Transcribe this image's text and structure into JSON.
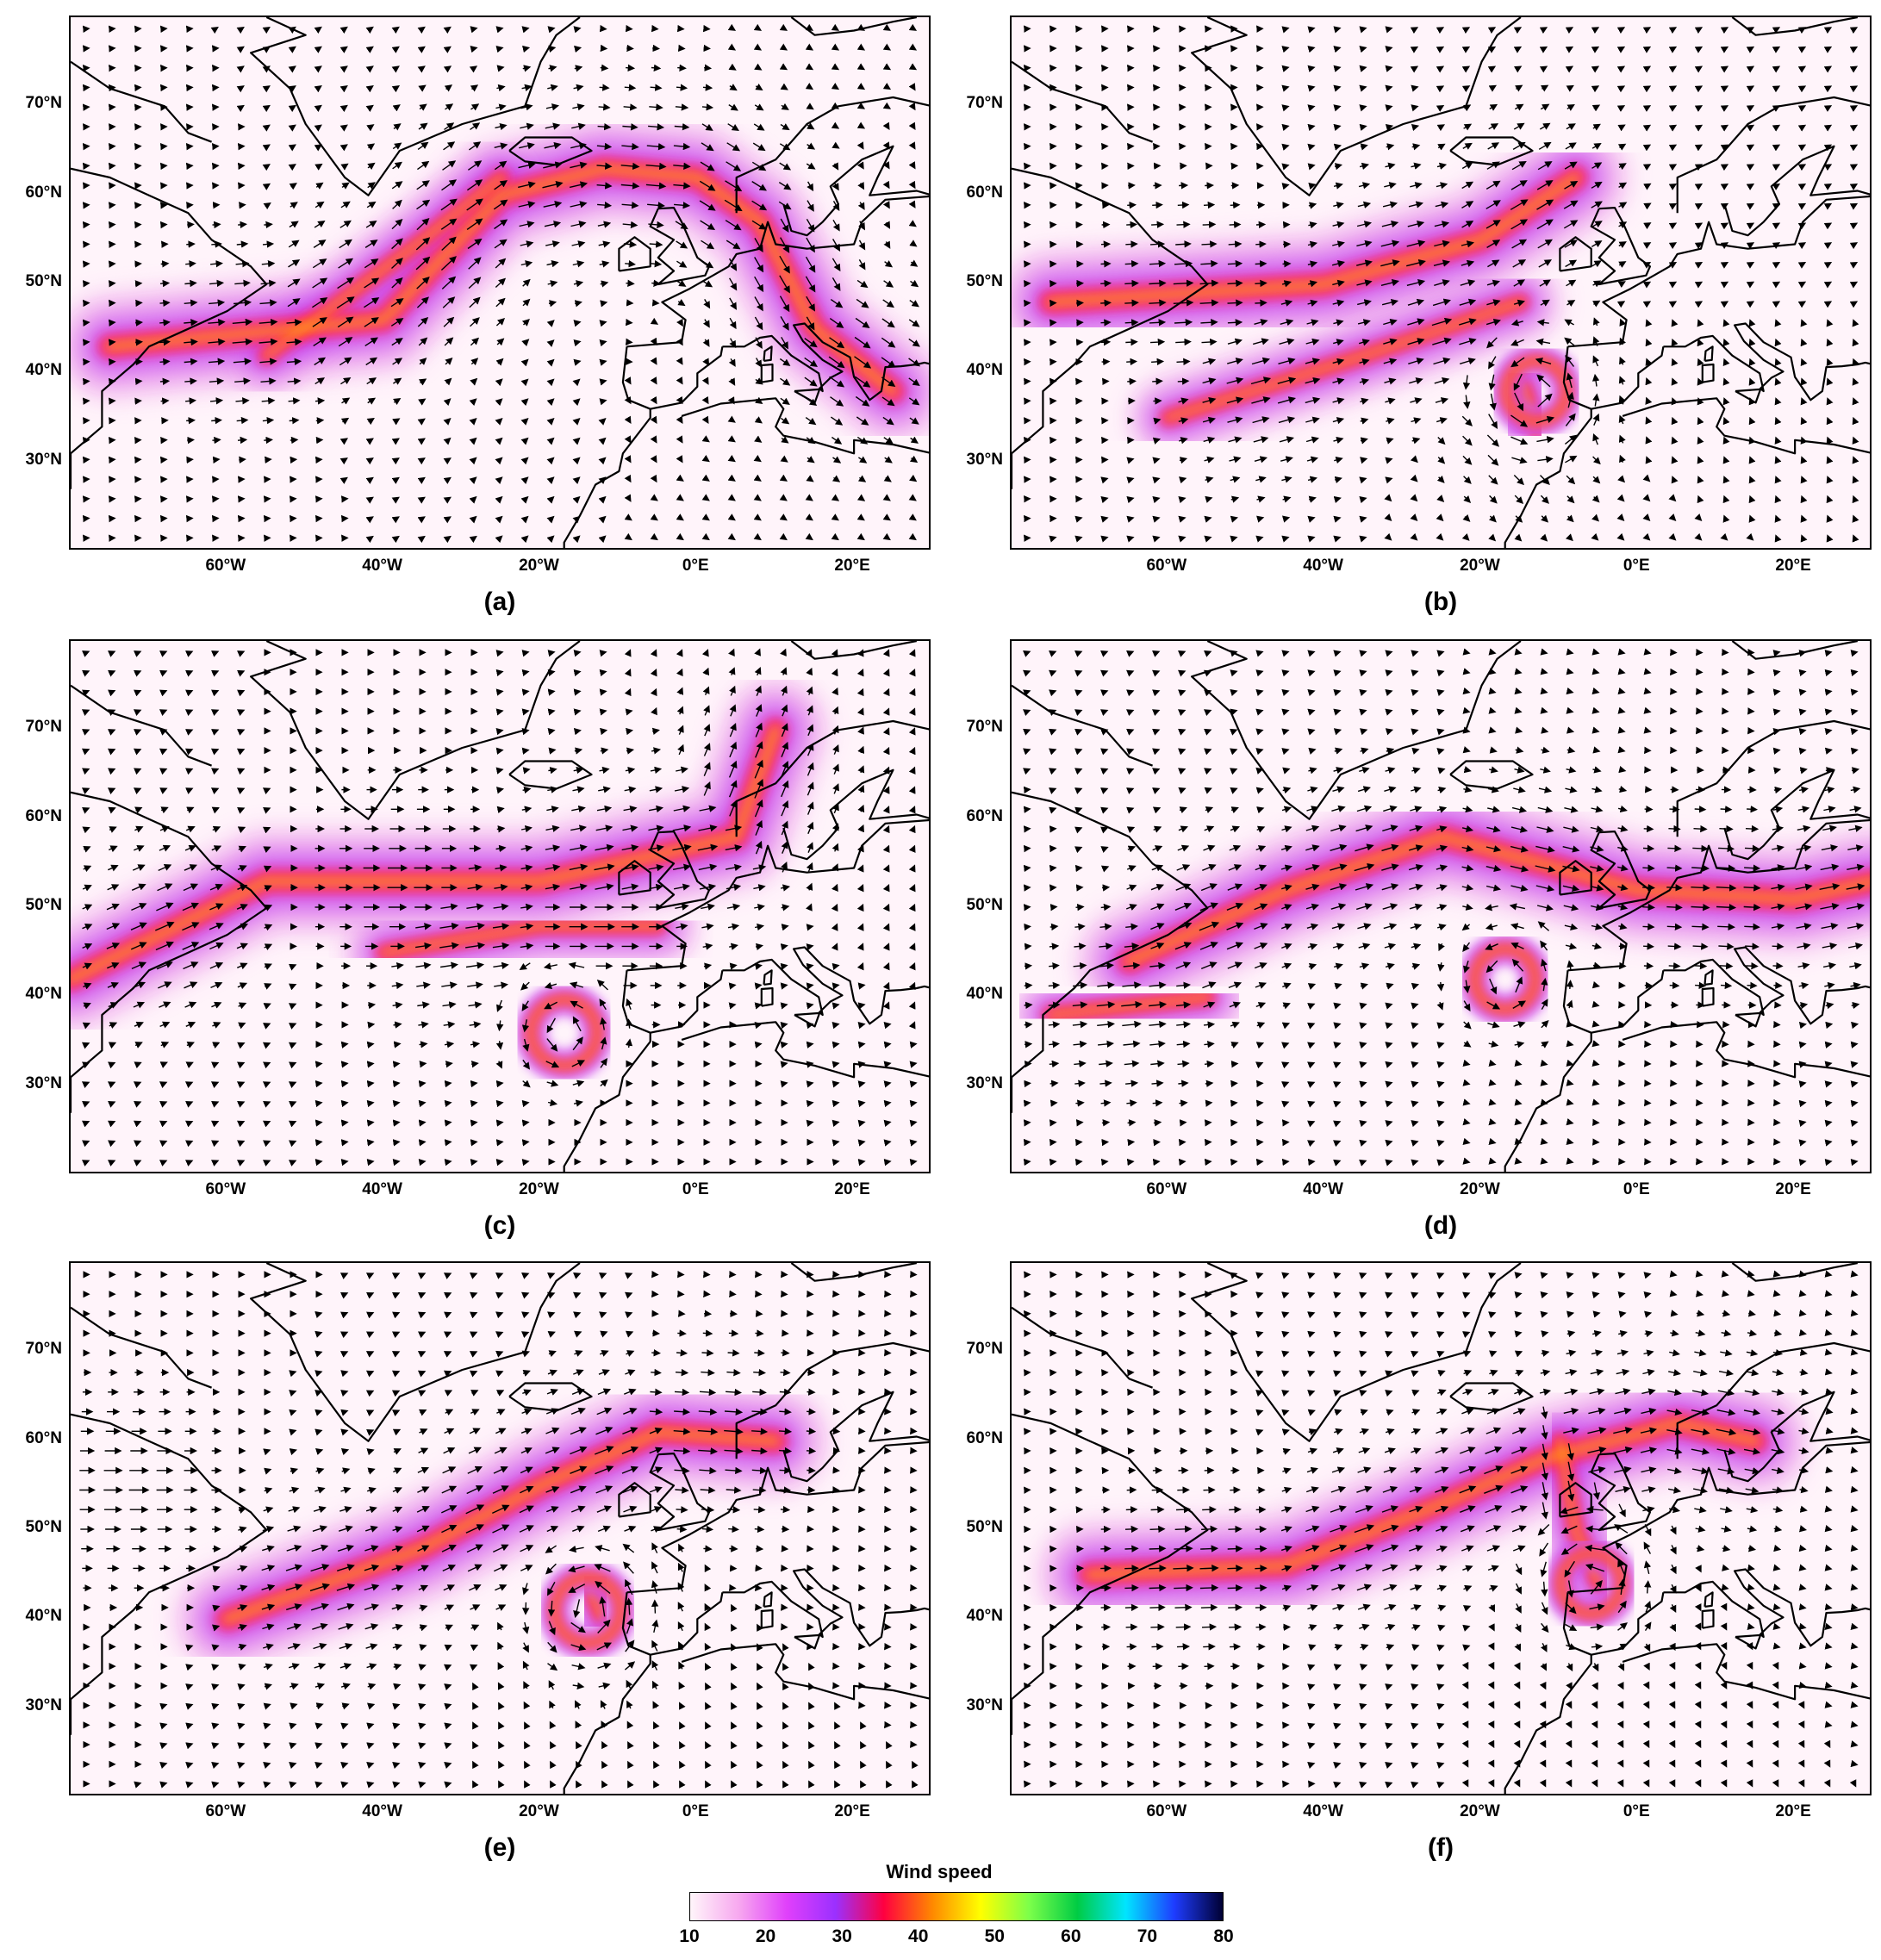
{
  "panels": [
    {
      "id": "a",
      "caption": "(a)"
    },
    {
      "id": "b",
      "caption": "(b)"
    },
    {
      "id": "c",
      "caption": "(c)"
    },
    {
      "id": "d",
      "caption": "(d)"
    },
    {
      "id": "e",
      "caption": "(e)"
    },
    {
      "id": "f",
      "caption": "(f)"
    }
  ],
  "lat_labels": [
    "70°N",
    "60°N",
    "50°N",
    "40°N",
    "30°N"
  ],
  "lon_labels": [
    "60°W",
    "40°W",
    "20°W",
    "0°E",
    "20°E"
  ],
  "colorbar": {
    "title": "Wind speed",
    "ticks": [
      "10",
      "20",
      "30",
      "40",
      "50",
      "60",
      "70",
      "80"
    ],
    "colors": [
      "#fff5fa",
      "#f7a8ef",
      "#e040fb",
      "#9b30ff",
      "#ff0040",
      "#ff8800",
      "#ffff00",
      "#7cff4a",
      "#00cc44",
      "#00e5ff",
      "#1e3cff",
      "#000033"
    ]
  },
  "map_extent": {
    "lon": [
      -80,
      30
    ],
    "lat": [
      20,
      80
    ]
  },
  "jets": {
    "a": [
      [
        -75,
        43,
        -40,
        46,
        -25,
        60,
        -12,
        63,
        0,
        62,
        8,
        57,
        15,
        45,
        25,
        38
      ],
      [
        -55,
        42,
        -35,
        55,
        -25,
        62
      ]
    ],
    "b": [
      [
        -75,
        48,
        -40,
        50,
        -20,
        55,
        -8,
        62
      ],
      [
        -60,
        35,
        -35,
        42,
        -15,
        48
      ],
      [
        -16,
        37,
        -13,
        34,
        -15,
        39
      ]
    ],
    "c": [
      [
        -80,
        42,
        -55,
        53,
        -20,
        53,
        -5,
        56,
        5,
        58,
        10,
        70
      ],
      [
        -40,
        45,
        -20,
        48,
        -5,
        48
      ]
    ],
    "d": [
      [
        -65,
        44,
        -45,
        52,
        -25,
        58,
        0,
        52,
        20,
        51,
        30,
        53
      ],
      [
        -75,
        38,
        -55,
        40
      ]
    ],
    "e": [
      [
        -60,
        40,
        -35,
        48,
        -20,
        55,
        -5,
        61,
        10,
        60
      ],
      [
        -80,
        55,
        -65,
        55
      ],
      [
        -12,
        40,
        -14,
        44
      ]
    ],
    "f": [
      [
        -70,
        45,
        -45,
        46,
        -25,
        53,
        -12,
        58,
        5,
        62,
        15,
        60
      ],
      [
        -10,
        60,
        -8,
        50,
        -5,
        44
      ]
    ]
  },
  "cyclones": {
    "a": [],
    "b": [
      [
        -13,
        38,
        22
      ]
    ],
    "c": [
      [
        -17,
        36,
        24
      ]
    ],
    "d": [
      [
        -17,
        42,
        22
      ]
    ],
    "e": [
      [
        -14,
        41,
        24
      ]
    ],
    "f": [
      [
        -6,
        44,
        22
      ]
    ]
  }
}
